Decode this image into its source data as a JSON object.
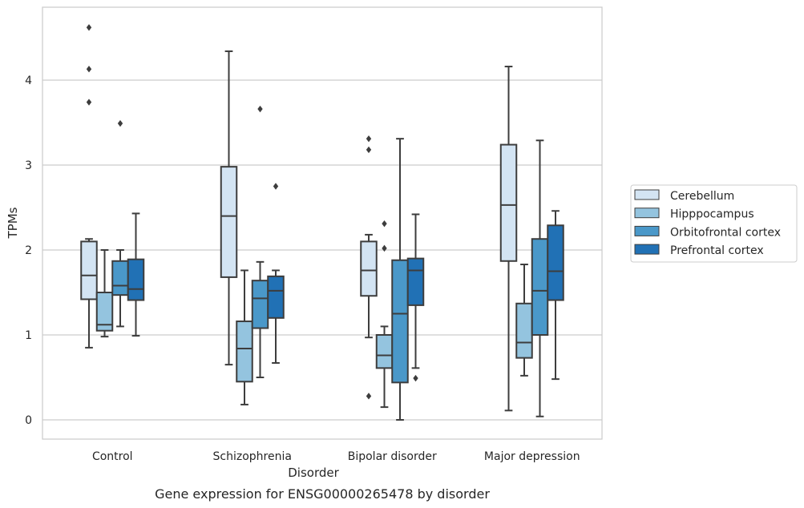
{
  "chart_data": {
    "type": "box",
    "title": "Gene expression for ENSG00000265478 by disorder",
    "xlabel": "Disorder",
    "ylabel": "TPMs",
    "ylim": [
      -0.22,
      4.86
    ],
    "yticks": [
      0,
      1,
      2,
      3,
      4
    ],
    "grid": "horizontal",
    "legend_position": "right",
    "categories": [
      "Control",
      "Schizophrenia",
      "Bipolar disorder",
      "Major depression"
    ],
    "series": [
      {
        "name": "Cerebellum",
        "color": "#d3e4f3",
        "boxes": [
          {
            "whislo": 0.85,
            "q1": 1.42,
            "med": 1.7,
            "q3": 2.1,
            "whishi": 2.13,
            "fliers": [
              3.74,
              4.13,
              4.62
            ]
          },
          {
            "whislo": 0.65,
            "q1": 1.68,
            "med": 2.4,
            "q3": 2.98,
            "whishi": 4.34,
            "fliers": []
          },
          {
            "whislo": 0.97,
            "q1": 1.46,
            "med": 1.76,
            "q3": 2.1,
            "whishi": 2.18,
            "fliers": [
              0.28,
              3.18,
              3.31
            ]
          },
          {
            "whislo": 0.11,
            "q1": 1.87,
            "med": 2.53,
            "q3": 3.24,
            "whishi": 4.16,
            "fliers": []
          }
        ]
      },
      {
        "name": "Hipppocampus",
        "color": "#94c4df",
        "boxes": [
          {
            "whislo": 0.98,
            "q1": 1.05,
            "med": 1.12,
            "q3": 1.5,
            "whishi": 2.0,
            "fliers": []
          },
          {
            "whislo": 0.18,
            "q1": 0.45,
            "med": 0.84,
            "q3": 1.16,
            "whishi": 1.76,
            "fliers": []
          },
          {
            "whislo": 0.15,
            "q1": 0.61,
            "med": 0.76,
            "q3": 1.0,
            "whishi": 1.1,
            "fliers": [
              2.02,
              2.31
            ]
          },
          {
            "whislo": 0.52,
            "q1": 0.73,
            "med": 0.91,
            "q3": 1.37,
            "whishi": 1.83,
            "fliers": []
          }
        ]
      },
      {
        "name": "Orbitofrontal cortex",
        "color": "#4a98c9",
        "boxes": [
          {
            "whislo": 1.1,
            "q1": 1.47,
            "med": 1.58,
            "q3": 1.87,
            "whishi": 2.0,
            "fliers": [
              3.49
            ]
          },
          {
            "whislo": 0.5,
            "q1": 1.08,
            "med": 1.43,
            "q3": 1.64,
            "whishi": 1.86,
            "fliers": [
              3.66
            ]
          },
          {
            "whislo": 0.0,
            "q1": 0.44,
            "med": 1.25,
            "q3": 1.88,
            "whishi": 3.31,
            "fliers": []
          },
          {
            "whislo": 0.04,
            "q1": 1.0,
            "med": 1.52,
            "q3": 2.13,
            "whishi": 3.29,
            "fliers": []
          }
        ]
      },
      {
        "name": "Prefrontal cortex",
        "color": "#2171b5",
        "boxes": [
          {
            "whislo": 0.99,
            "q1": 1.41,
            "med": 1.54,
            "q3": 1.89,
            "whishi": 2.43,
            "fliers": []
          },
          {
            "whislo": 0.67,
            "q1": 1.2,
            "med": 1.52,
            "q3": 1.69,
            "whishi": 1.76,
            "fliers": [
              2.75
            ]
          },
          {
            "whislo": 0.61,
            "q1": 1.35,
            "med": 1.76,
            "q3": 1.9,
            "whishi": 2.42,
            "fliers": [
              0.49
            ]
          },
          {
            "whislo": 0.48,
            "q1": 1.41,
            "med": 1.75,
            "q3": 2.29,
            "whishi": 2.46,
            "fliers": []
          }
        ]
      }
    ]
  }
}
